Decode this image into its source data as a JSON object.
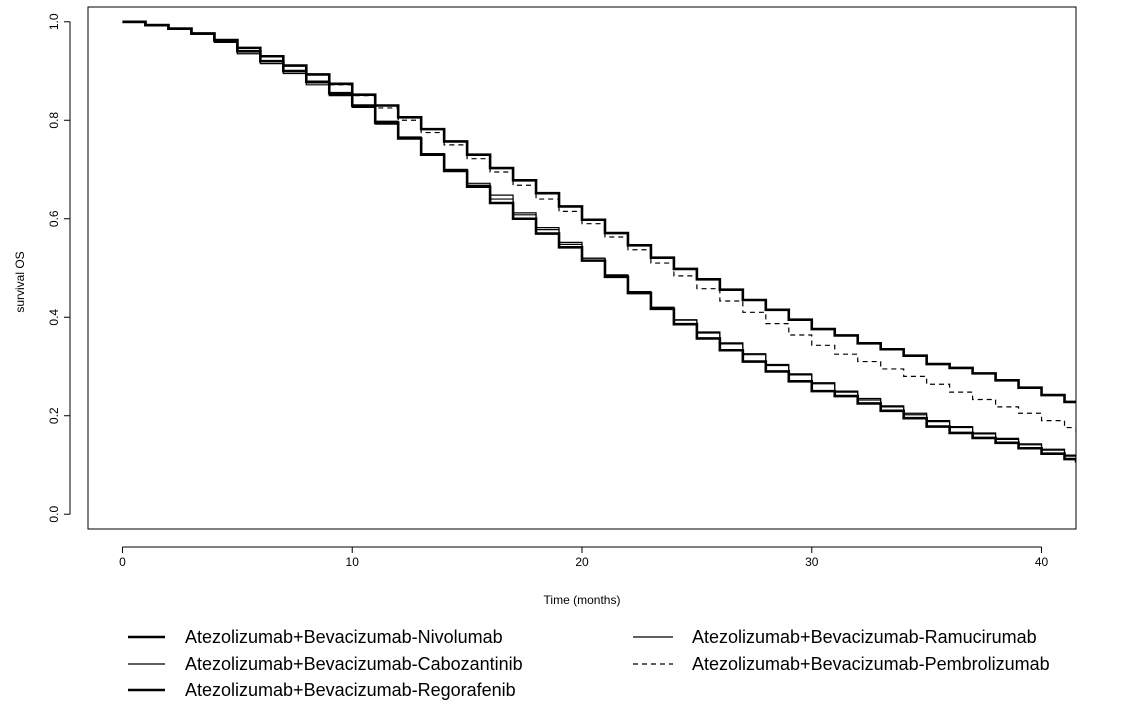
{
  "chart_data": {
    "type": "line",
    "title": "",
    "xlabel": "Time (months)",
    "ylabel": "survival OS",
    "xlim": [
      -1.5,
      41.5
    ],
    "ylim": [
      -0.03,
      1.03
    ],
    "x_ticks": [
      0,
      10,
      20,
      30,
      40
    ],
    "x_tick_labels": [
      "0",
      "10",
      "20",
      "30",
      "40"
    ],
    "y_ticks": [
      0.0,
      0.2,
      0.4,
      0.6,
      0.8,
      1.0
    ],
    "y_tick_labels": [
      "0.0",
      "0.2",
      "0.4",
      "0.6",
      "0.8",
      "1.0"
    ],
    "grid": false,
    "legend_position": "bottom",
    "series": [
      {
        "name": "Atezolizumab+Bevacizumab-Nivolumab",
        "line_style": "solid",
        "line_weight": "thick",
        "color": "#000000",
        "points": [
          [
            0,
            1.0
          ],
          [
            1,
            0.993
          ],
          [
            2,
            0.986
          ],
          [
            3,
            0.976
          ],
          [
            4,
            0.963
          ],
          [
            5,
            0.947
          ],
          [
            6,
            0.93
          ],
          [
            7,
            0.911
          ],
          [
            8,
            0.893
          ],
          [
            9,
            0.874
          ],
          [
            10,
            0.852
          ],
          [
            11,
            0.83
          ],
          [
            12,
            0.806
          ],
          [
            13,
            0.782
          ],
          [
            14,
            0.757
          ],
          [
            15,
            0.73
          ],
          [
            16,
            0.703
          ],
          [
            17,
            0.678
          ],
          [
            18,
            0.652
          ],
          [
            19,
            0.625
          ],
          [
            20,
            0.598
          ],
          [
            21,
            0.571
          ],
          [
            22,
            0.546
          ],
          [
            23,
            0.521
          ],
          [
            24,
            0.498
          ],
          [
            25,
            0.477
          ],
          [
            26,
            0.456
          ],
          [
            27,
            0.435
          ],
          [
            28,
            0.415
          ],
          [
            29,
            0.395
          ],
          [
            30,
            0.376
          ],
          [
            31,
            0.363
          ],
          [
            32,
            0.347
          ],
          [
            33,
            0.335
          ],
          [
            34,
            0.322
          ],
          [
            35,
            0.305
          ],
          [
            36,
            0.297
          ],
          [
            37,
            0.286
          ],
          [
            38,
            0.272
          ],
          [
            39,
            0.257
          ],
          [
            40,
            0.242
          ],
          [
            41,
            0.228
          ],
          [
            41.5,
            0.228
          ]
        ]
      },
      {
        "name": "Atezolizumab+Bevacizumab-Ramucirumab",
        "line_style": "solid",
        "line_weight": "thin",
        "color": "#000000",
        "points": [
          [
            0,
            1.0
          ],
          [
            1,
            0.993
          ],
          [
            2,
            0.986
          ],
          [
            3,
            0.976
          ],
          [
            4,
            0.96
          ],
          [
            5,
            0.94
          ],
          [
            6,
            0.92
          ],
          [
            7,
            0.9
          ],
          [
            8,
            0.876
          ],
          [
            9,
            0.852
          ],
          [
            10,
            0.828
          ],
          [
            11,
            0.798
          ],
          [
            12,
            0.766
          ],
          [
            13,
            0.732
          ],
          [
            14,
            0.7
          ],
          [
            15,
            0.668
          ],
          [
            16,
            0.64
          ],
          [
            17,
            0.608
          ],
          [
            18,
            0.578
          ],
          [
            19,
            0.548
          ],
          [
            20,
            0.52
          ],
          [
            21,
            0.484
          ],
          [
            22,
            0.452
          ],
          [
            23,
            0.42
          ],
          [
            24,
            0.394
          ],
          [
            25,
            0.368
          ],
          [
            26,
            0.346
          ],
          [
            27,
            0.324
          ],
          [
            28,
            0.302
          ],
          [
            29,
            0.283
          ],
          [
            30,
            0.265
          ],
          [
            31,
            0.248
          ],
          [
            32,
            0.232
          ],
          [
            33,
            0.218
          ],
          [
            34,
            0.202
          ],
          [
            35,
            0.188
          ],
          [
            36,
            0.176
          ],
          [
            37,
            0.163
          ],
          [
            38,
            0.152
          ],
          [
            39,
            0.141
          ],
          [
            40,
            0.13
          ],
          [
            41,
            0.118
          ],
          [
            41.5,
            0.112
          ]
        ]
      },
      {
        "name": "Atezolizumab+Bevacizumab-Cabozantinib",
        "line_style": "solid",
        "line_weight": "thin",
        "color": "#000000",
        "points": [
          [
            0,
            1.0
          ],
          [
            1,
            0.993
          ],
          [
            2,
            0.986
          ],
          [
            3,
            0.976
          ],
          [
            4,
            0.958
          ],
          [
            5,
            0.935
          ],
          [
            6,
            0.915
          ],
          [
            7,
            0.895
          ],
          [
            8,
            0.872
          ],
          [
            9,
            0.85
          ],
          [
            10,
            0.826
          ],
          [
            11,
            0.792
          ],
          [
            12,
            0.764
          ],
          [
            13,
            0.732
          ],
          [
            14,
            0.7
          ],
          [
            15,
            0.672
          ],
          [
            16,
            0.648
          ],
          [
            17,
            0.612
          ],
          [
            18,
            0.582
          ],
          [
            19,
            0.552
          ],
          [
            20,
            0.52
          ],
          [
            21,
            0.486
          ],
          [
            22,
            0.452
          ],
          [
            23,
            0.42
          ],
          [
            24,
            0.395
          ],
          [
            25,
            0.37
          ],
          [
            26,
            0.348
          ],
          [
            27,
            0.326
          ],
          [
            28,
            0.304
          ],
          [
            29,
            0.285
          ],
          [
            30,
            0.267
          ],
          [
            31,
            0.25
          ],
          [
            32,
            0.235
          ],
          [
            33,
            0.22
          ],
          [
            34,
            0.205
          ],
          [
            35,
            0.19
          ],
          [
            36,
            0.178
          ],
          [
            37,
            0.165
          ],
          [
            38,
            0.154
          ],
          [
            39,
            0.143
          ],
          [
            40,
            0.132
          ],
          [
            41,
            0.12
          ],
          [
            41.5,
            0.115
          ]
        ]
      },
      {
        "name": "Atezolizumab+Bevacizumab-Pembrolizumab",
        "line_style": "dashed",
        "line_weight": "thin",
        "color": "#000000",
        "points": [
          [
            0,
            1.0
          ],
          [
            1,
            0.993
          ],
          [
            2,
            0.986
          ],
          [
            3,
            0.976
          ],
          [
            4,
            0.963
          ],
          [
            5,
            0.947
          ],
          [
            6,
            0.93
          ],
          [
            7,
            0.911
          ],
          [
            8,
            0.893
          ],
          [
            9,
            0.872
          ],
          [
            10,
            0.85
          ],
          [
            11,
            0.825
          ],
          [
            12,
            0.8
          ],
          [
            13,
            0.775
          ],
          [
            14,
            0.75
          ],
          [
            15,
            0.722
          ],
          [
            16,
            0.695
          ],
          [
            17,
            0.668
          ],
          [
            18,
            0.64
          ],
          [
            19,
            0.615
          ],
          [
            20,
            0.59
          ],
          [
            21,
            0.563
          ],
          [
            22,
            0.537
          ],
          [
            23,
            0.51
          ],
          [
            24,
            0.484
          ],
          [
            25,
            0.458
          ],
          [
            26,
            0.433
          ],
          [
            27,
            0.41
          ],
          [
            28,
            0.387
          ],
          [
            29,
            0.364
          ],
          [
            30,
            0.343
          ],
          [
            31,
            0.325
          ],
          [
            32,
            0.31
          ],
          [
            33,
            0.295
          ],
          [
            34,
            0.28
          ],
          [
            35,
            0.264
          ],
          [
            36,
            0.248
          ],
          [
            37,
            0.233
          ],
          [
            38,
            0.218
          ],
          [
            39,
            0.205
          ],
          [
            40,
            0.19
          ],
          [
            41,
            0.176
          ],
          [
            41.5,
            0.165
          ]
        ]
      },
      {
        "name": "Atezolizumab+Bevacizumab-Regorafenib",
        "line_style": "solid",
        "line_weight": "thick",
        "color": "#000000",
        "points": [
          [
            0,
            1.0
          ],
          [
            1,
            0.993
          ],
          [
            2,
            0.986
          ],
          [
            3,
            0.976
          ],
          [
            4,
            0.962
          ],
          [
            5,
            0.94
          ],
          [
            6,
            0.92
          ],
          [
            7,
            0.9
          ],
          [
            8,
            0.878
          ],
          [
            9,
            0.855
          ],
          [
            10,
            0.83
          ],
          [
            11,
            0.795
          ],
          [
            12,
            0.763
          ],
          [
            13,
            0.73
          ],
          [
            14,
            0.697
          ],
          [
            15,
            0.665
          ],
          [
            16,
            0.632
          ],
          [
            17,
            0.6
          ],
          [
            18,
            0.57
          ],
          [
            19,
            0.542
          ],
          [
            20,
            0.515
          ],
          [
            21,
            0.482
          ],
          [
            22,
            0.449
          ],
          [
            23,
            0.417
          ],
          [
            24,
            0.386
          ],
          [
            25,
            0.357
          ],
          [
            26,
            0.333
          ],
          [
            27,
            0.31
          ],
          [
            28,
            0.29
          ],
          [
            29,
            0.27
          ],
          [
            30,
            0.25
          ],
          [
            31,
            0.24
          ],
          [
            32,
            0.225
          ],
          [
            33,
            0.21
          ],
          [
            34,
            0.195
          ],
          [
            35,
            0.178
          ],
          [
            36,
            0.165
          ],
          [
            37,
            0.155
          ],
          [
            38,
            0.145
          ],
          [
            39,
            0.134
          ],
          [
            40,
            0.123
          ],
          [
            41,
            0.112
          ],
          [
            41.5,
            0.105
          ]
        ]
      }
    ],
    "legend_order": [
      0,
      2,
      4,
      1,
      3
    ]
  }
}
